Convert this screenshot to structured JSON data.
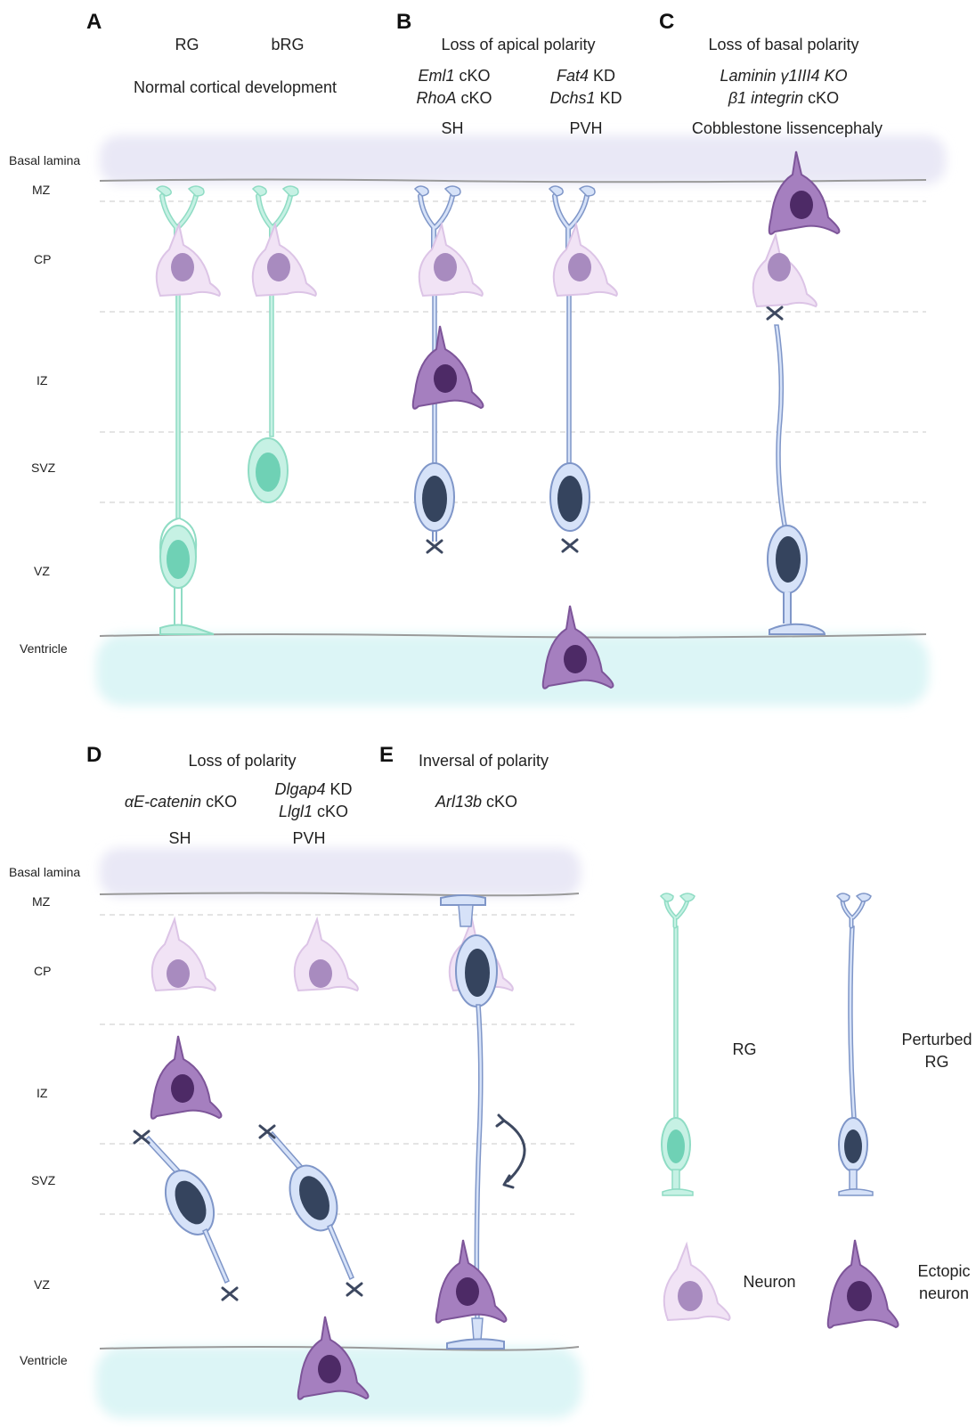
{
  "colors": {
    "rg_fill": "#c6f1e4",
    "rg_stroke": "#8fdcc4",
    "rg_nucleus": "#6fd1b5",
    "prg_fill": "#d6e2f8",
    "prg_stroke": "#7f96c8",
    "prg_nucleus": "#35445e",
    "neuron_fill": "#f1e3f5",
    "neuron_stroke": "#dcc4e6",
    "neuron_nucleus": "#a88bbf",
    "ectopic_fill": "#a57fbf",
    "ectopic_stroke": "#7d5599",
    "ectopic_nucleus": "#4d2a66",
    "basal_lamina": "#e9e8f6",
    "ventricle": "#dcf5f6",
    "cross": "#3d4860"
  },
  "zones_top": [
    "Basal lamina",
    "MZ",
    "CP",
    "IZ",
    "SVZ",
    "VZ",
    "Ventricle"
  ],
  "zones_bottom": [
    "Basal lamina",
    "MZ",
    "CP",
    "IZ",
    "SVZ",
    "VZ",
    "Ventricle"
  ],
  "panelA": {
    "letter": "A",
    "col1": "RG",
    "col2": "bRG",
    "title": "Normal cortical development"
  },
  "panelB": {
    "letter": "B",
    "title": "Loss of apical polarity",
    "col1_gene1": "Eml1",
    "col1_suffix1": " cKO",
    "col1_gene2": "RhoA",
    "col1_suffix2": " cKO",
    "col1_pheno": "SH",
    "col2_gene1": "Fat4",
    "col2_suffix1": " KD",
    "col2_gene2": "Dchs1",
    "col2_suffix2": " KD",
    "col2_pheno": "PVH"
  },
  "panelC": {
    "letter": "C",
    "title": "Loss of basal polarity",
    "line1": "Laminin γ1III4 KO",
    "line2_gene": "β1 integrin",
    "line2_suffix": " cKO",
    "pheno": "Cobblestone lissencephaly"
  },
  "panelD": {
    "letter": "D",
    "title": "Loss of polarity",
    "col1_gene": "αE-catenin",
    "col1_suffix": " cKO",
    "col1_pheno": "SH",
    "col2_gene1": "Dlgap4",
    "col2_suffix1": " KD",
    "col2_gene2": "Llgl1",
    "col2_suffix2": " cKO",
    "col2_pheno": "PVH"
  },
  "panelE": {
    "letter": "E",
    "title": "Inversal of polarity",
    "gene": "Arl13b",
    "suffix": " cKO"
  },
  "legend": {
    "rg": "RG",
    "perturbed_line1": "Perturbed",
    "perturbed_line2": "RG",
    "neuron": "Neuron",
    "ectopic_line1": "Ectopic",
    "ectopic_line2": "neuron"
  }
}
